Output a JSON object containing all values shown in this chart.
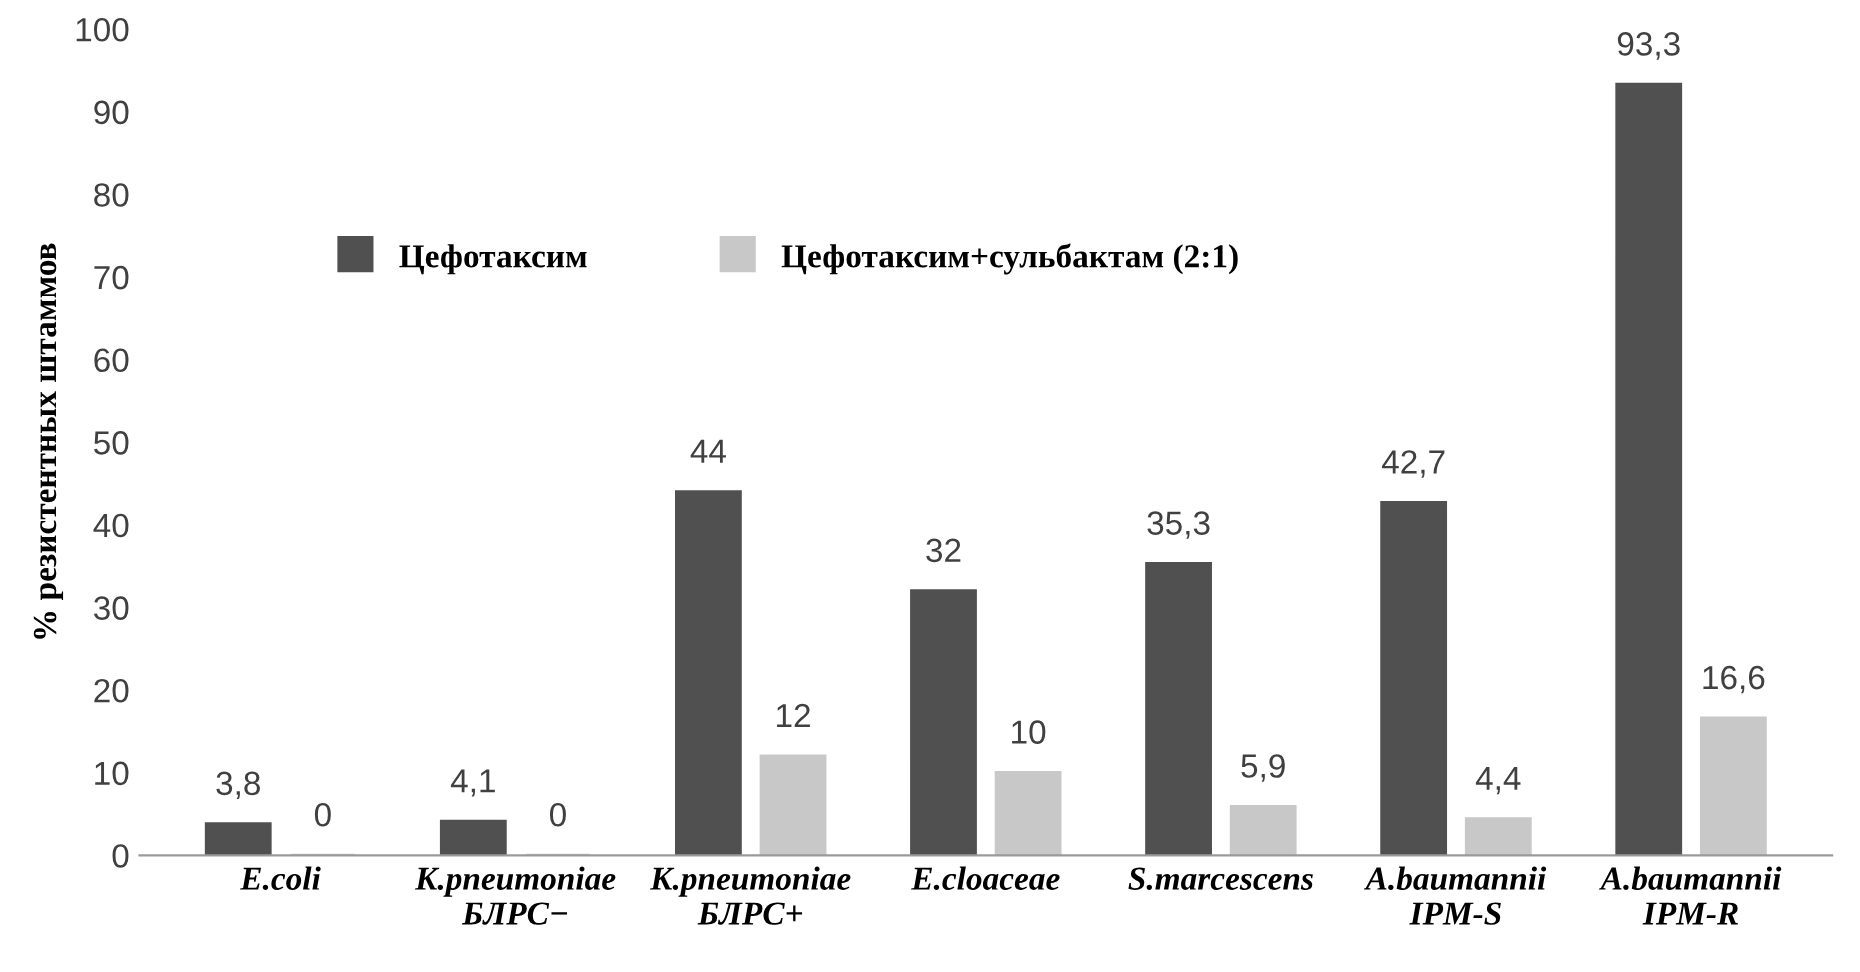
{
  "chart_data": {
    "type": "bar",
    "ylabel": "% резистентных штаммов",
    "categories": [
      "E.coli",
      "K.pneumoniae\nБЛРС−",
      "K.pneumoniae\nБЛРС+",
      "E.cloaceae",
      "S.marcescens",
      "A.baumannii\nIPM-S",
      "A.baumannii\nIPM-R"
    ],
    "series": [
      {
        "name": "Цефотаксим",
        "color": "#505050",
        "values": [
          3.8,
          4.1,
          44,
          32,
          35.3,
          42.7,
          93.3
        ],
        "value_labels": [
          "3,8",
          "4,1",
          "44",
          "32",
          "35,3",
          "42,7",
          "93,3"
        ]
      },
      {
        "name": "Цефотаксим+сульбактам (2:1)",
        "color": "#c8c8c8",
        "values": [
          0,
          0,
          12,
          10,
          5.9,
          4.4,
          16.6
        ],
        "value_labels": [
          "0",
          "0",
          "12",
          "10",
          "5,9",
          "4,4",
          "16,6"
        ]
      }
    ],
    "ylim": [
      0,
      100
    ],
    "yticks": [
      0,
      10,
      20,
      30,
      40,
      50,
      60,
      70,
      80,
      90,
      100
    ],
    "grid": false,
    "legend": "top left"
  }
}
